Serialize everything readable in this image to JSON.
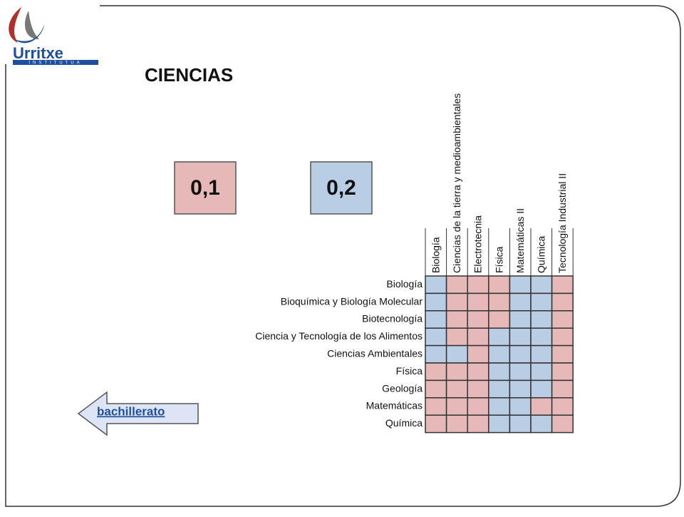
{
  "logo": {
    "name": "Urritxe",
    "subtitle": "INSTITUTUA"
  },
  "title": "CIENCIAS",
  "legend": [
    {
      "label": "0,1",
      "value": 0.1,
      "color": "#e6b9b8"
    },
    {
      "label": "0,2",
      "value": 0.2,
      "color": "#b9cde5"
    }
  ],
  "matrix": {
    "columns": [
      "Biología",
      "Ciencias de la tierra y medioambientales",
      "Electrotecnia",
      "Física",
      "Matemáticas II",
      "Química",
      "Tecnología Industrial II"
    ],
    "rows": [
      {
        "label": "Biología",
        "values": [
          0.2,
          0.1,
          0.1,
          0.1,
          0.2,
          0.2,
          0.1
        ]
      },
      {
        "label": "Bioquímica y Biología Molecular",
        "values": [
          0.2,
          0.1,
          0.1,
          0.1,
          0.2,
          0.2,
          0.1
        ]
      },
      {
        "label": "Biotecnología",
        "values": [
          0.2,
          0.1,
          0.1,
          0.1,
          0.2,
          0.2,
          0.1
        ]
      },
      {
        "label": "Ciencia y Tecnología de los Alimentos",
        "values": [
          0.2,
          0.1,
          0.1,
          0.2,
          0.2,
          0.2,
          0.1
        ]
      },
      {
        "label": "Ciencias Ambientales",
        "values": [
          0.2,
          0.2,
          0.1,
          0.2,
          0.2,
          0.2,
          0.1
        ]
      },
      {
        "label": "Física",
        "values": [
          0.1,
          0.1,
          0.1,
          0.2,
          0.2,
          0.2,
          0.1
        ]
      },
      {
        "label": "Geología",
        "values": [
          0.1,
          0.1,
          0.1,
          0.2,
          0.2,
          0.2,
          0.1
        ]
      },
      {
        "label": "Matemáticas",
        "values": [
          0.1,
          0.1,
          0.1,
          0.2,
          0.2,
          0.1,
          0.1
        ]
      },
      {
        "label": "Química",
        "values": [
          0.1,
          0.1,
          0.1,
          0.2,
          0.2,
          0.2,
          0.1
        ]
      }
    ]
  },
  "back_link": "bachillerato"
}
